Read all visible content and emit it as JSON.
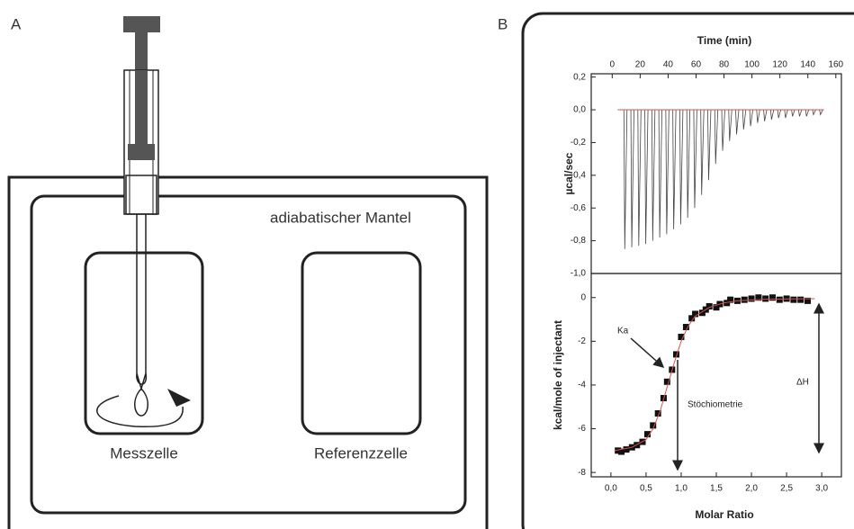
{
  "diagram": {
    "panel_a": "A",
    "mantel": "adiabatischer Mantel",
    "cells": [
      "Messzelle",
      "Referenzzelle"
    ],
    "panel_b": "B"
  },
  "chart_data": [
    {
      "type": "injections",
      "x_label": "Time (min)",
      "y_label": "µcal/sec",
      "x": [
        9,
        14,
        19,
        24,
        29,
        34,
        39,
        44,
        49,
        54,
        59,
        64,
        69,
        74,
        79,
        84,
        89,
        94,
        99,
        104,
        109,
        114,
        119,
        124,
        129,
        134,
        139,
        144,
        149
      ],
      "values": [
        -0.85,
        -0.84,
        -0.83,
        -0.82,
        -0.8,
        -0.78,
        -0.76,
        -0.73,
        -0.7,
        -0.66,
        -0.6,
        -0.52,
        -0.43,
        -0.33,
        -0.25,
        -0.19,
        -0.15,
        -0.12,
        -0.1,
        -0.08,
        -0.07,
        -0.06,
        -0.05,
        -0.05,
        -0.04,
        -0.04,
        -0.04,
        -0.03,
        -0.03
      ],
      "color": "#444444",
      "baseline": {
        "value": 0,
        "color": "#d9534f"
      },
      "xlim": [
        -15,
        164
      ],
      "ylim": [
        -1.0,
        0.22
      ],
      "xticks": [
        0,
        20,
        40,
        60,
        80,
        100,
        120,
        140,
        160
      ],
      "yticks": [
        {
          "value": 0.2,
          "label": "0,2"
        },
        {
          "value": 0.0,
          "label": "0,0"
        },
        {
          "value": -0.2,
          "label": "-0,2"
        },
        {
          "value": -0.4,
          "label": "-0,4"
        },
        {
          "value": -0.6,
          "label": "-0,6"
        },
        {
          "value": -0.8,
          "label": "-0,8"
        },
        {
          "value": -1.0,
          "label": "-1,0"
        }
      ]
    },
    {
      "type": "scatter",
      "x_label": "Molar Ratio",
      "y_label": "kcal/mole of injectant",
      "annotations": [
        "Ka",
        "Stöchiometrie",
        "ΔH"
      ],
      "series": [
        {
          "mode": "marker",
          "color": "#111111",
          "x": [
            0.1,
            0.15,
            0.22,
            0.3,
            0.37,
            0.45,
            0.52,
            0.6,
            0.67,
            0.75,
            0.8,
            0.87,
            0.93,
            1.0,
            1.07,
            1.15,
            1.2,
            1.3,
            1.35,
            1.4,
            1.5,
            1.55,
            1.65,
            1.7,
            1.8,
            1.9,
            2.0,
            2.1,
            2.2,
            2.3,
            2.4,
            2.5,
            2.6,
            2.7,
            2.8
          ],
          "values": [
            -7.0,
            -7.05,
            -6.95,
            -6.85,
            -6.75,
            -6.6,
            -6.25,
            -5.85,
            -5.3,
            -4.6,
            -3.85,
            -3.3,
            -2.6,
            -1.8,
            -1.35,
            -0.95,
            -0.75,
            -0.7,
            -0.55,
            -0.4,
            -0.45,
            -0.3,
            -0.25,
            -0.1,
            -0.15,
            -0.1,
            -0.05,
            0.0,
            -0.05,
            0.0,
            -0.1,
            -0.05,
            -0.1,
            -0.1,
            -0.15
          ]
        },
        {
          "mode": "line",
          "color": "#d9534f",
          "x": [
            0.05,
            0.3,
            0.5,
            0.6,
            0.7,
            0.8,
            0.9,
            1.0,
            1.1,
            1.2,
            1.4,
            1.6,
            1.8,
            2.2,
            2.9
          ],
          "values": [
            -7.0,
            -6.85,
            -6.5,
            -6.0,
            -5.2,
            -4.1,
            -3.0,
            -2.0,
            -1.3,
            -0.85,
            -0.45,
            -0.25,
            -0.15,
            -0.08,
            -0.05
          ]
        }
      ],
      "xlim": [
        -0.28,
        3.28
      ],
      "ylim": [
        -8.2,
        1.1
      ],
      "xticks": [
        {
          "value": 0,
          "label": "0,0"
        },
        {
          "value": 0.5,
          "label": "0,5"
        },
        {
          "value": 1,
          "label": "1,0"
        },
        {
          "value": 1.5,
          "label": "1,5"
        },
        {
          "value": 2,
          "label": "2,0"
        },
        {
          "value": 2.5,
          "label": "2,5"
        },
        {
          "value": 3,
          "label": "3,0"
        }
      ],
      "yticks": [
        0,
        -2,
        -4,
        -6,
        -8
      ]
    }
  ]
}
